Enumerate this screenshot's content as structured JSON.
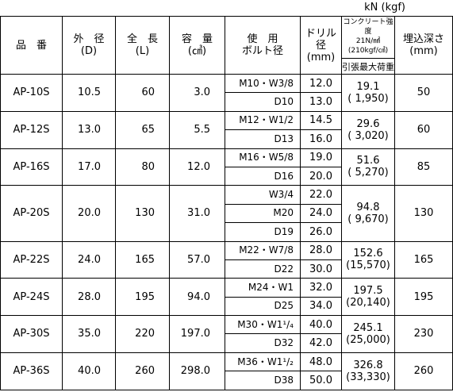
{
  "header": {
    "unit": "kN (kgf)",
    "columns": [
      [
        "品　番"
      ],
      [
        "外　径",
        "(D)"
      ],
      [
        "全　長",
        "(L)"
      ],
      [
        "容　量",
        "(㎤)"
      ],
      [
        "使　用",
        "ボルト径"
      ],
      [
        "ドリル径",
        "(mm)"
      ],
      [
        "コンクリート強度",
        "21N/㎟(210kgf/㎠)",
        "引張最大荷重"
      ],
      [
        "埋込深さ",
        "(mm)"
      ]
    ]
  },
  "rows": [
    {
      "product": "AP-10S",
      "diameter": "10.5",
      "length": "60",
      "volume": "3.0",
      "bolts": [
        {
          "bolt": "M10・W3/8",
          "drill": "12.0"
        },
        {
          "bolt": "D10",
          "drill": "13.0"
        }
      ],
      "load_kn": "19.1",
      "load_kgf": "( 1,950)",
      "depth": "50"
    },
    {
      "product": "AP-12S",
      "diameter": "13.0",
      "length": "65",
      "volume": "5.5",
      "bolts": [
        {
          "bolt": "M12・W1/2",
          "drill": "14.5"
        },
        {
          "bolt": "D13",
          "drill": "16.0"
        }
      ],
      "load_kn": "29.6",
      "load_kgf": "( 3,020)",
      "depth": "60"
    },
    {
      "product": "AP-16S",
      "diameter": "17.0",
      "length": "80",
      "volume": "12.0",
      "bolts": [
        {
          "bolt": "M16・W5/8",
          "drill": "19.0"
        },
        {
          "bolt": "D16",
          "drill": "20.0"
        }
      ],
      "load_kn": "51.6",
      "load_kgf": "( 5,270)",
      "depth": "85"
    },
    {
      "product": "AP-20S",
      "diameter": "20.0",
      "length": "130",
      "volume": "31.0",
      "bolts": [
        {
          "bolt": "W3/4",
          "drill": "22.0"
        },
        {
          "bolt": "M20",
          "drill": "24.0"
        },
        {
          "bolt": "D19",
          "drill": "26.0"
        }
      ],
      "load_kn": "94.8",
      "load_kgf": "( 9,670)",
      "depth": "130"
    },
    {
      "product": "AP-22S",
      "diameter": "24.0",
      "length": "165",
      "volume": "57.0",
      "bolts": [
        {
          "bolt": "M22・W7/8",
          "drill": "28.0"
        },
        {
          "bolt": "D22",
          "drill": "30.0"
        }
      ],
      "load_kn": "152.6",
      "load_kgf": "(15,570)",
      "depth": "165"
    },
    {
      "product": "AP-24S",
      "diameter": "28.0",
      "length": "195",
      "volume": "94.0",
      "bolts": [
        {
          "bolt": "M24・W1",
          "drill": "32.0"
        },
        {
          "bolt": "D25",
          "drill": "34.0"
        }
      ],
      "load_kn": "197.5",
      "load_kgf": "(20,140)",
      "depth": "195"
    },
    {
      "product": "AP-30S",
      "diameter": "35.0",
      "length": "220",
      "volume": "197.0",
      "bolts": [
        {
          "bolt": "M30・W1¹/₄",
          "drill": "40.0"
        },
        {
          "bolt": "D32",
          "drill": "42.0"
        }
      ],
      "load_kn": "245.1",
      "load_kgf": "(25,000)",
      "depth": "230"
    },
    {
      "product": "AP-36S",
      "diameter": "40.0",
      "length": "260",
      "volume": "298.0",
      "bolts": [
        {
          "bolt": "M36・W1¹/₂",
          "drill": "48.0"
        },
        {
          "bolt": "D38",
          "drill": "50.0"
        }
      ],
      "load_kn": "326.8",
      "load_kgf": "(33,330)",
      "depth": "260"
    }
  ]
}
